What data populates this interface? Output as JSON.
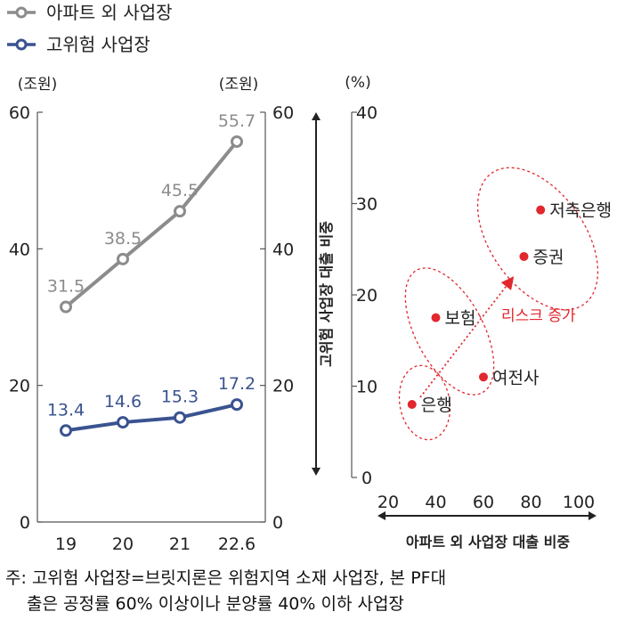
{
  "chart_data": [
    {
      "type": "line",
      "legend": [
        {
          "label": "아파트 외 사업장",
          "color": "#8c8c8c"
        },
        {
          "label": "고위험 사업장",
          "color": "#3a5390"
        }
      ],
      "legend_position": "top-left",
      "categories": [
        "19",
        "20",
        "21",
        "22.6"
      ],
      "series": [
        {
          "name": "아파트 외 사업장",
          "values": [
            31.5,
            38.5,
            45.5,
            55.7
          ],
          "labels": [
            "31.5",
            "38.5",
            "45.5",
            "55.7"
          ],
          "color": "#8c8c8c"
        },
        {
          "name": "고위험 사업장",
          "values": [
            13.4,
            14.6,
            15.3,
            17.2
          ],
          "labels": [
            "13.4",
            "14.6",
            "15.3",
            "17.2"
          ],
          "color": "#3a5390"
        }
      ],
      "y_left_unit": "(조원)",
      "y_right_unit": "(조원)",
      "ylim": [
        0,
        60
      ],
      "yticks": [
        "0",
        "20",
        "40",
        "60"
      ],
      "grid": false
    },
    {
      "type": "scatter",
      "y_unit": "(%)",
      "ylabel": "고위험 사업장 대출 비중",
      "xlabel": "아파트 외 사업장 대출 비중",
      "xlim": [
        20,
        100
      ],
      "ylim": [
        0,
        40
      ],
      "xticks": [
        "20",
        "40",
        "60",
        "80",
        "100"
      ],
      "yticks": [
        "0",
        "10",
        "20",
        "30",
        "40"
      ],
      "point_color": "#e0282e",
      "points": [
        {
          "label": "저축은행",
          "x": 84,
          "y": 29.3
        },
        {
          "label": "증권",
          "x": 77,
          "y": 24.2
        },
        {
          "label": "보험",
          "x": 40,
          "y": 17.5
        },
        {
          "label": "여전사",
          "x": 60,
          "y": 11.0
        },
        {
          "label": "은행",
          "x": 30,
          "y": 8.0
        }
      ],
      "annotation": "리스크 증가",
      "grid": false
    }
  ],
  "note": {
    "line1": "주: 고위험 사업장=브릿지론은 위험지역 소재 사업장, 본 PF대",
    "line2": "출은 공정률 60% 이상이나 분양률 40% 이하 사업장"
  }
}
